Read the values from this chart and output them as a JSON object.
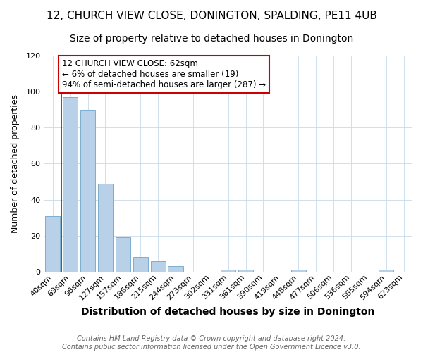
{
  "title": "12, CHURCH VIEW CLOSE, DONINGTON, SPALDING, PE11 4UB",
  "subtitle": "Size of property relative to detached houses in Donington",
  "xlabel": "Distribution of detached houses by size in Donington",
  "ylabel": "Number of detached properties",
  "bar_labels": [
    "40sqm",
    "69sqm",
    "98sqm",
    "127sqm",
    "157sqm",
    "186sqm",
    "215sqm",
    "244sqm",
    "273sqm",
    "302sqm",
    "331sqm",
    "361sqm",
    "390sqm",
    "419sqm",
    "448sqm",
    "477sqm",
    "506sqm",
    "536sqm",
    "565sqm",
    "594sqm",
    "623sqm"
  ],
  "bar_values": [
    31,
    97,
    90,
    49,
    19,
    8,
    6,
    3,
    0,
    0,
    1,
    1,
    0,
    0,
    1,
    0,
    0,
    0,
    0,
    1,
    0
  ],
  "bar_color": "#b8d0e8",
  "bar_edge_color": "#7aaed0",
  "property_line_color": "#cc0000",
  "annotation_line1": "12 CHURCH VIEW CLOSE: 62sqm",
  "annotation_line2": "← 6% of detached houses are smaller (19)",
  "annotation_line3": "94% of semi-detached houses are larger (287) →",
  "annotation_box_color": "#ffffff",
  "annotation_box_edge_color": "#cc0000",
  "ylim": [
    0,
    120
  ],
  "yticks": [
    0,
    20,
    40,
    60,
    80,
    100,
    120
  ],
  "footer_line1": "Contains HM Land Registry data © Crown copyright and database right 2024.",
  "footer_line2": "Contains public sector information licensed under the Open Government Licence v3.0.",
  "background_color": "#ffffff",
  "grid_color": "#c8dcea",
  "title_fontsize": 11,
  "subtitle_fontsize": 10,
  "xlabel_fontsize": 10,
  "ylabel_fontsize": 9,
  "tick_fontsize": 8,
  "annotation_fontsize": 8.5,
  "footer_fontsize": 7
}
